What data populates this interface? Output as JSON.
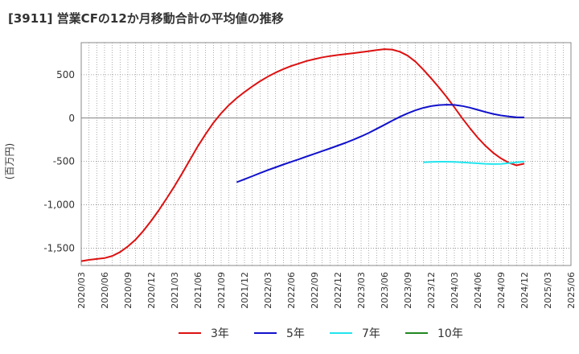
{
  "chart_data": {
    "type": "line",
    "title": "[3911]  営業CFの12か月移動合計の平均値の推移",
    "ylabel": "(百万円)",
    "xlabel": "",
    "ylim": [
      -1700,
      870
    ],
    "yticks": [
      500,
      0,
      -500,
      -1000,
      -1500
    ],
    "ytick_labels": [
      "500",
      "0",
      "-500",
      "-1,000",
      "-1,500"
    ],
    "xlim": [
      "2020-03",
      "2025-06"
    ],
    "xtick_labels": [
      "2020/03",
      "2020/06",
      "2020/09",
      "2020/12",
      "2021/03",
      "2021/06",
      "2021/09",
      "2021/12",
      "2022/03",
      "2022/06",
      "2022/09",
      "2022/12",
      "2023/03",
      "2023/06",
      "2023/09",
      "2023/12",
      "2024/03",
      "2024/06",
      "2024/09",
      "2024/12",
      "2025/03",
      "2025/06"
    ],
    "grid": true,
    "legend_position": "bottom",
    "series": [
      {
        "name": "3年",
        "color": "#dd1111",
        "points": [
          [
            "2020-03",
            -1650
          ],
          [
            "2020-04",
            -1635
          ],
          [
            "2020-05",
            -1625
          ],
          [
            "2020-06",
            -1615
          ],
          [
            "2020-07",
            -1590
          ],
          [
            "2020-08",
            -1545
          ],
          [
            "2020-09",
            -1480
          ],
          [
            "2020-10",
            -1400
          ],
          [
            "2020-11",
            -1300
          ],
          [
            "2020-12",
            -1185
          ],
          [
            "2021-01",
            -1060
          ],
          [
            "2021-02",
            -925
          ],
          [
            "2021-03",
            -785
          ],
          [
            "2021-04",
            -635
          ],
          [
            "2021-05",
            -480
          ],
          [
            "2021-06",
            -325
          ],
          [
            "2021-07",
            -185
          ],
          [
            "2021-08",
            -55
          ],
          [
            "2021-09",
            55
          ],
          [
            "2021-10",
            150
          ],
          [
            "2021-11",
            230
          ],
          [
            "2021-12",
            300
          ],
          [
            "2022-01",
            365
          ],
          [
            "2022-02",
            425
          ],
          [
            "2022-03",
            478
          ],
          [
            "2022-04",
            525
          ],
          [
            "2022-05",
            565
          ],
          [
            "2022-06",
            600
          ],
          [
            "2022-07",
            630
          ],
          [
            "2022-08",
            658
          ],
          [
            "2022-09",
            680
          ],
          [
            "2022-10",
            700
          ],
          [
            "2022-11",
            715
          ],
          [
            "2022-12",
            727
          ],
          [
            "2023-01",
            737
          ],
          [
            "2023-02",
            748
          ],
          [
            "2023-03",
            760
          ],
          [
            "2023-04",
            772
          ],
          [
            "2023-05",
            785
          ],
          [
            "2023-06",
            795
          ],
          [
            "2023-07",
            790
          ],
          [
            "2023-08",
            765
          ],
          [
            "2023-09",
            720
          ],
          [
            "2023-10",
            650
          ],
          [
            "2023-11",
            560
          ],
          [
            "2023-12",
            460
          ],
          [
            "2024-01",
            355
          ],
          [
            "2024-02",
            245
          ],
          [
            "2024-03",
            125
          ],
          [
            "2024-04",
            0
          ],
          [
            "2024-05",
            -115
          ],
          [
            "2024-06",
            -225
          ],
          [
            "2024-07",
            -320
          ],
          [
            "2024-08",
            -400
          ],
          [
            "2024-09",
            -465
          ],
          [
            "2024-10",
            -515
          ],
          [
            "2024-11",
            -545
          ],
          [
            "2024-12",
            -525
          ]
        ]
      },
      {
        "name": "5年",
        "color": "#1111cc",
        "points": [
          [
            "2021-11",
            -740
          ],
          [
            "2021-12",
            -705
          ],
          [
            "2022-01",
            -670
          ],
          [
            "2022-02",
            -635
          ],
          [
            "2022-03",
            -600
          ],
          [
            "2022-04",
            -568
          ],
          [
            "2022-05",
            -536
          ],
          [
            "2022-06",
            -505
          ],
          [
            "2022-07",
            -474
          ],
          [
            "2022-08",
            -443
          ],
          [
            "2022-09",
            -412
          ],
          [
            "2022-10",
            -381
          ],
          [
            "2022-11",
            -350
          ],
          [
            "2022-12",
            -318
          ],
          [
            "2023-01",
            -285
          ],
          [
            "2023-02",
            -250
          ],
          [
            "2023-03",
            -212
          ],
          [
            "2023-04",
            -170
          ],
          [
            "2023-05",
            -125
          ],
          [
            "2023-06",
            -78
          ],
          [
            "2023-07",
            -30
          ],
          [
            "2023-08",
            15
          ],
          [
            "2023-09",
            55
          ],
          [
            "2023-10",
            90
          ],
          [
            "2023-11",
            118
          ],
          [
            "2023-12",
            138
          ],
          [
            "2024-01",
            150
          ],
          [
            "2024-02",
            155
          ],
          [
            "2024-03",
            152
          ],
          [
            "2024-04",
            140
          ],
          [
            "2024-05",
            120
          ],
          [
            "2024-06",
            95
          ],
          [
            "2024-07",
            70
          ],
          [
            "2024-08",
            48
          ],
          [
            "2024-09",
            30
          ],
          [
            "2024-10",
            18
          ],
          [
            "2024-11",
            10
          ],
          [
            "2024-12",
            8
          ]
        ]
      },
      {
        "name": "7年",
        "color": "#22e5ee",
        "points": [
          [
            "2023-11",
            -510
          ],
          [
            "2023-12",
            -505
          ],
          [
            "2024-01",
            -503
          ],
          [
            "2024-02",
            -503
          ],
          [
            "2024-03",
            -505
          ],
          [
            "2024-04",
            -510
          ],
          [
            "2024-05",
            -516
          ],
          [
            "2024-06",
            -522
          ],
          [
            "2024-07",
            -527
          ],
          [
            "2024-08",
            -530
          ],
          [
            "2024-09",
            -528
          ],
          [
            "2024-10",
            -520
          ],
          [
            "2024-11",
            -510
          ],
          [
            "2024-12",
            -500
          ]
        ]
      },
      {
        "name": "10年",
        "color": "#228822",
        "points": []
      }
    ]
  }
}
